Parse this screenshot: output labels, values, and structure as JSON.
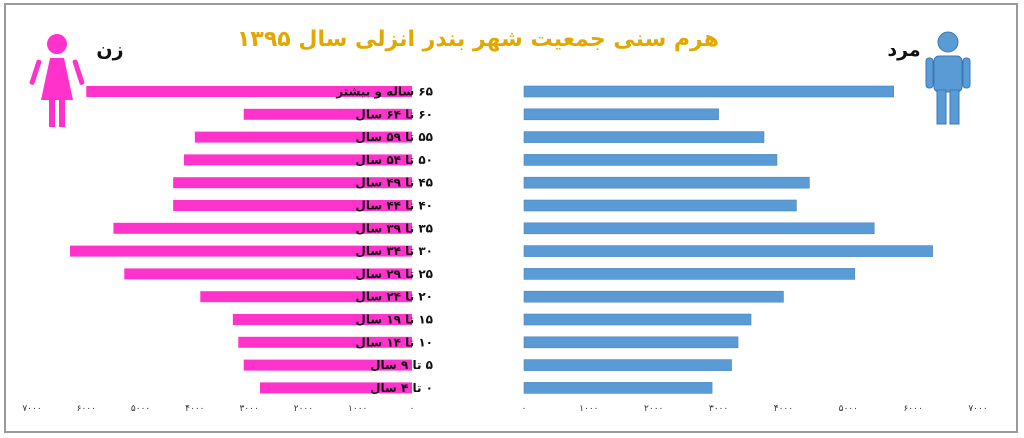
{
  "chart_data": {
    "type": "bar",
    "title": "هرم سنی جمعیت شهر بندر انزلی سال ۱۳۹۵",
    "left_label": "زن",
    "right_label": "مرد",
    "colors": {
      "female": "#ff33cc",
      "male": "#5b9bd5",
      "title": "#e0a800"
    },
    "categories": [
      "۶۵ ساله و بیشتر",
      "۶۰ تا ۶۴ سال",
      "۵۵ تا ۵۹ سال",
      "۵۰ تا ۵۴ سال",
      "۴۵ تا ۴۹ سال",
      "۴۰ تا ۴۴ سال",
      "۳۵ تا ۳۹ سال",
      "۳۰ تا ۳۴ سال",
      "۲۵ تا ۲۹ سال",
      "۲۰ تا ۲۴ سال",
      "۱۵ تا ۱۹ سال",
      "۱۰ تا ۱۴ سال",
      "۵ تا ۹ سال",
      "۰ تا ۴ سال"
    ],
    "series": [
      {
        "name": "زن",
        "values": [
          6000,
          3100,
          4000,
          4200,
          4400,
          4400,
          5500,
          6300,
          5300,
          3900,
          3300,
          3200,
          3100,
          2800
        ]
      },
      {
        "name": "مرد",
        "values": [
          5700,
          3000,
          3700,
          3900,
          4400,
          4200,
          5400,
          6300,
          5100,
          4000,
          3500,
          3300,
          3200,
          2900
        ]
      }
    ],
    "xlim": [
      0,
      7000
    ],
    "ticks": [
      "۰",
      "۱۰۰۰",
      "۲۰۰۰",
      "۳۰۰۰",
      "۴۰۰۰",
      "۵۰۰۰",
      "۶۰۰۰",
      "۷۰۰۰"
    ],
    "grid": false
  }
}
